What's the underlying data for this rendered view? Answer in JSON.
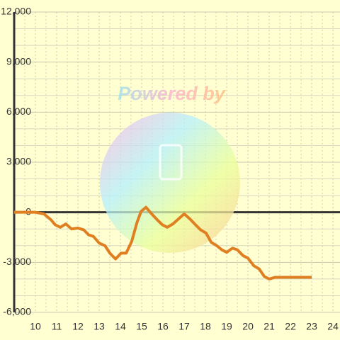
{
  "chart_data": {
    "type": "line",
    "watermark": "Powered by",
    "x": [
      9,
      10,
      10.4,
      10.73,
      10.93,
      11.17,
      11.43,
      11.7,
      12,
      12.27,
      12.5,
      12.73,
      13,
      13.27,
      13.5,
      13.77,
      14.03,
      14.27,
      14.53,
      14.77,
      14.97,
      15.2,
      15.47,
      15.73,
      15.97,
      16.2,
      16.47,
      16.73,
      17,
      17.27,
      17.53,
      17.77,
      18.03,
      18.27,
      18.53,
      18.77,
      19,
      19.27,
      19.5,
      19.77,
      20,
      20.27,
      20.53,
      20.77,
      21,
      21.27,
      23
    ],
    "series": [
      {
        "color": "#e07f22",
        "values": [
          0,
          0,
          -100,
          -450,
          -750,
          -900,
          -700,
          -1000,
          -950,
          -1050,
          -1350,
          -1450,
          -1850,
          -2000,
          -2450,
          -2800,
          -2450,
          -2450,
          -1750,
          -650,
          50,
          300,
          -100,
          -450,
          -750,
          -900,
          -700,
          -400,
          -100,
          -400,
          -750,
          -1050,
          -1250,
          -1800,
          -2000,
          -2250,
          -2400,
          -2150,
          -2250,
          -2600,
          -2750,
          -3200,
          -3400,
          -3850,
          -4000,
          -3900,
          -3900
        ]
      }
    ],
    "xlim": [
      9,
      24.33
    ],
    "ylim": [
      -6000,
      12000
    ],
    "xticks": [
      10,
      11,
      12,
      13,
      14,
      15,
      16,
      17,
      18,
      19,
      20,
      21,
      22,
      23,
      24
    ],
    "xminorticks": [
      9.5,
      10.5,
      11.5,
      12.5,
      13.5,
      14.5,
      15.5,
      16.5,
      17.5,
      18.5,
      19.5,
      20.5,
      21.5,
      22.5,
      23.5
    ],
    "yticks": [
      {
        "value": -6000,
        "label": "-6,000"
      },
      {
        "value": -3000,
        "label": "-3,000"
      },
      0,
      {
        "value": 3000,
        "label": "3,000"
      },
      {
        "value": 6000,
        "label": "6,000"
      },
      {
        "value": 9000,
        "label": "9,000"
      },
      {
        "value": 12000,
        "label": "12,000"
      }
    ],
    "yminorticks": [
      -5000,
      -4000,
      -2000,
      -1000,
      1000,
      2000,
      4000,
      5000,
      7000,
      8000,
      10000,
      11000
    ],
    "grid": true
  }
}
